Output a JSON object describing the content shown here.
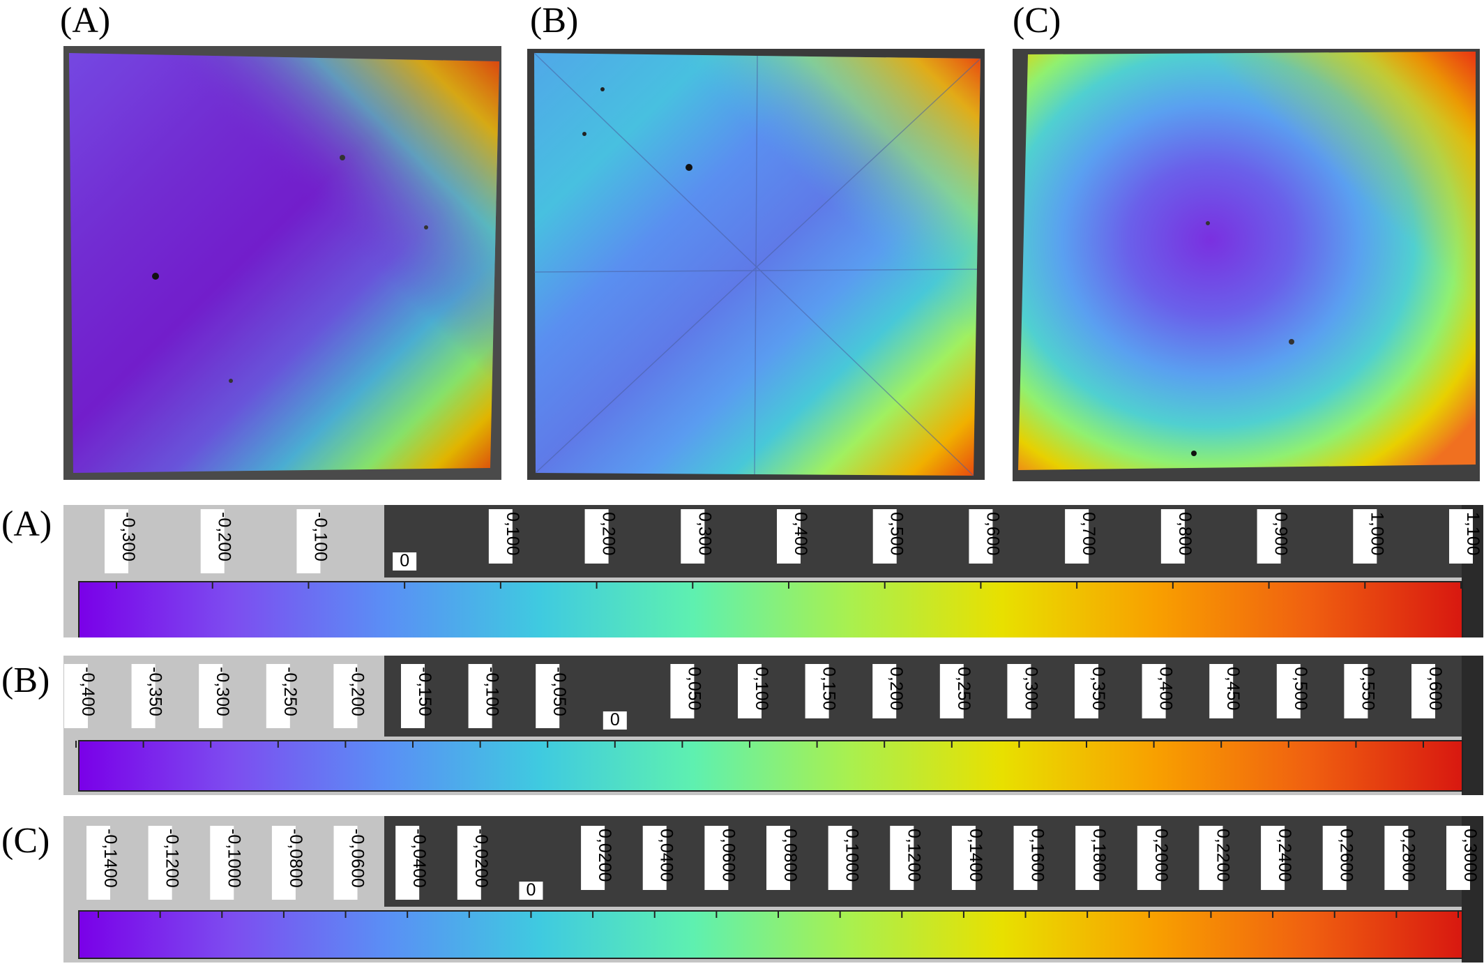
{
  "panels": [
    {
      "id": "A",
      "label": "(A)"
    },
    {
      "id": "B",
      "label": "(B)"
    },
    {
      "id": "C",
      "label": "(C)"
    }
  ],
  "colorbar_colors": [
    "#7a00e8",
    "#7d4df0",
    "#5a8ff5",
    "#3fcae0",
    "#5ef0b0",
    "#a8f050",
    "#e8e000",
    "#f8a000",
    "#f06010",
    "#d81810"
  ],
  "scales": [
    {
      "id": "A",
      "label": "(A)",
      "ticks": [
        "-0,300",
        "-0,200",
        "-0,100",
        "0",
        "0,100",
        "0,200",
        "0,300",
        "0,400",
        "0,500",
        "0,600",
        "0,700",
        "0,800",
        "0,900",
        "1,000",
        "1,100"
      ]
    },
    {
      "id": "B",
      "label": "(B)",
      "ticks": [
        "-0,400",
        "-0,350",
        "-0,300",
        "-0,250",
        "-0,200",
        "-0,150",
        "-0,100",
        "-0,050",
        "0",
        "0,050",
        "0,100",
        "0,150",
        "0,200",
        "0,250",
        "0,300",
        "0,350",
        "0,400",
        "0,450",
        "0,500",
        "0,550",
        "0,600"
      ]
    },
    {
      "id": "C",
      "label": "(C)",
      "ticks": [
        "-0,1400",
        "-0,1200",
        "-0,1000",
        "-0,0800",
        "-0,0600",
        "-0,0400",
        "-0,0200",
        "0",
        "0,0200",
        "0,0400",
        "0,0600",
        "0,0800",
        "0,1000",
        "0,1200",
        "0,1400",
        "0,1600",
        "0,1800",
        "0,2000",
        "0,2200",
        "0,2400",
        "0,2600",
        "0,2800",
        "0,3000"
      ]
    }
  ]
}
